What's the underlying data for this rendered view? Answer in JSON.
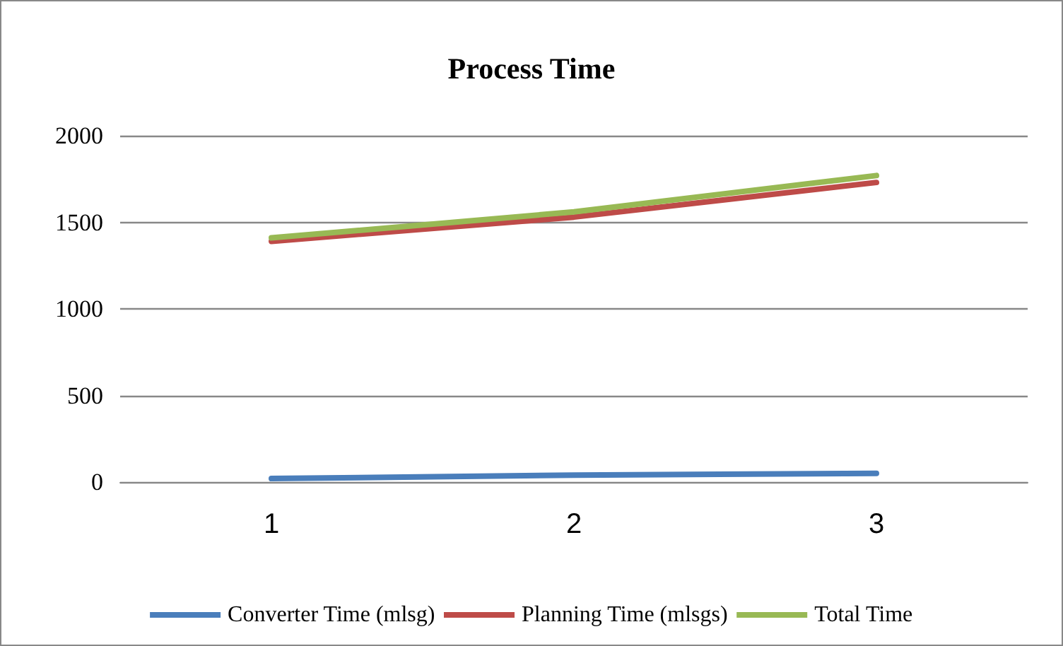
{
  "chart_data": {
    "type": "line",
    "title": "Process Time",
    "categories": [
      "1",
      "2",
      "3"
    ],
    "series": [
      {
        "name": "Converter Time (mlsg)",
        "color": "#4a7ebb",
        "values": [
          20,
          40,
          50
        ]
      },
      {
        "name": "Planning Time (mlsgs)",
        "color": "#be4b48",
        "values": [
          1390,
          1530,
          1730
        ]
      },
      {
        "name": "Total Time",
        "color": "#98b954",
        "values": [
          1410,
          1560,
          1770
        ]
      }
    ],
    "ylim": [
      0,
      2000
    ],
    "yticks": [
      0,
      500,
      1000,
      1500,
      2000
    ],
    "grid": "y",
    "legend": "bottom",
    "marker": "none",
    "line_style": "solid"
  }
}
